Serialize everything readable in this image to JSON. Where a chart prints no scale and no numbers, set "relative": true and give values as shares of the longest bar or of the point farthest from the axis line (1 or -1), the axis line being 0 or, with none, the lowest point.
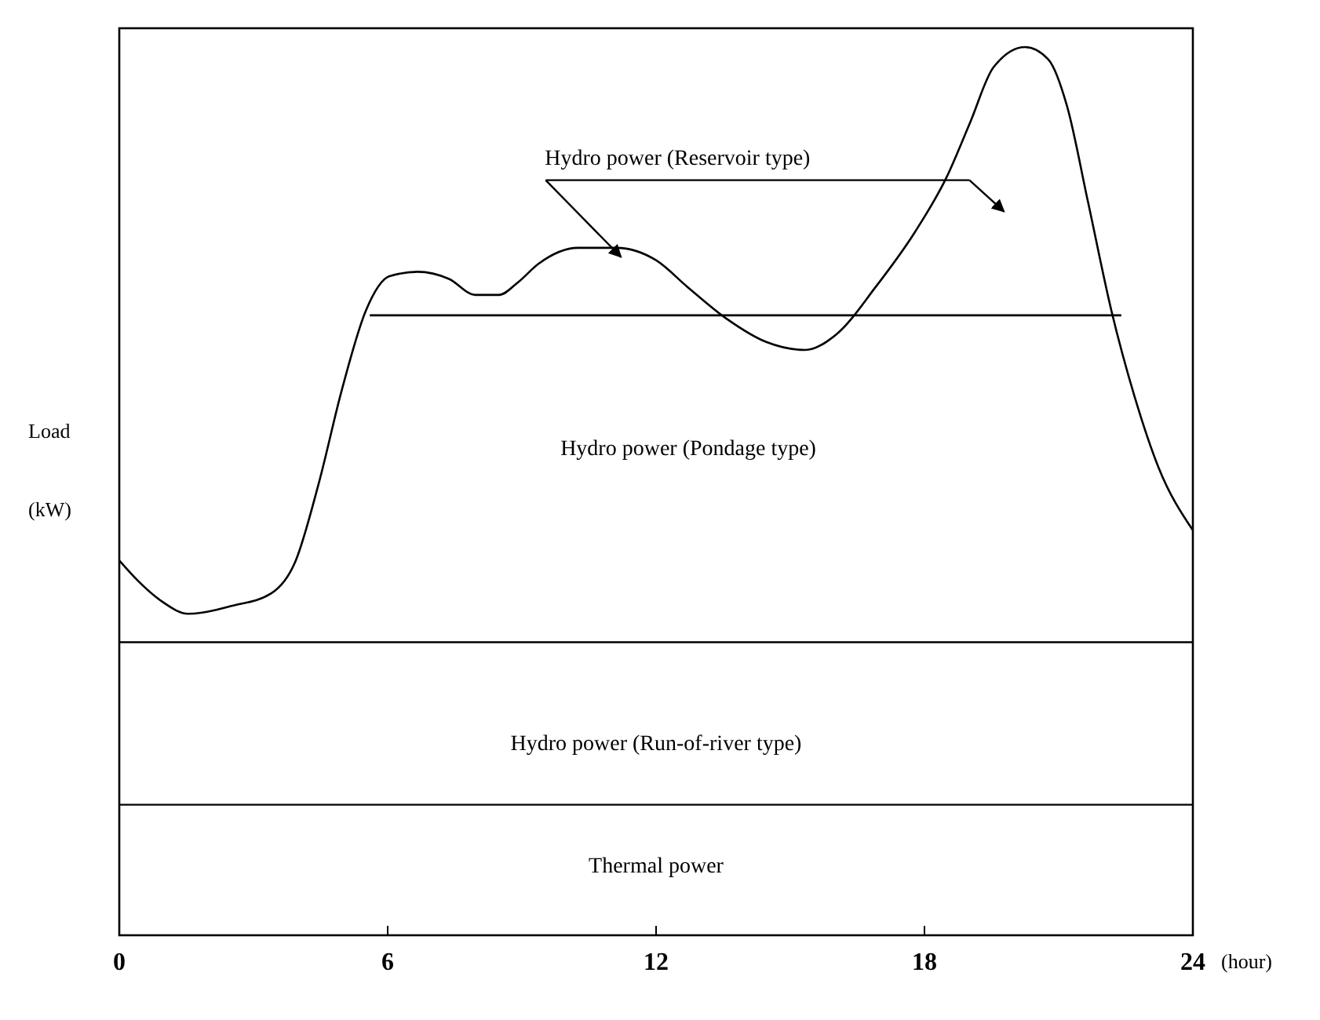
{
  "chart_data": {
    "type": "line",
    "relative": true,
    "xlabel": "(hour)",
    "ylabel": "Load (kW)",
    "xlim": [
      0,
      24
    ],
    "xticks": [
      0,
      6,
      12,
      18,
      24
    ],
    "grid": false,
    "marker": "none",
    "line_style": "solid",
    "series": [
      {
        "color": "#000000",
        "x": [
          0,
          0.42,
          0.95,
          1.54,
          2.53,
          3.4,
          3.93,
          4.46,
          4.98,
          5.51,
          6.04,
          6.67,
          7.37,
          7.96,
          8.49,
          8.91,
          9.37,
          10.25,
          11.12,
          12,
          12.7,
          13.58,
          14.46,
          15.33,
          16.04,
          16.91,
          17.79,
          18.49,
          19.02,
          19.54,
          20.25,
          20.77,
          21.19,
          21.65,
          22.18,
          22.7,
          23.23,
          24
        ],
        "values": [
          0.422,
          0.399,
          0.376,
          0.362,
          0.371,
          0.385,
          0.42,
          0.509,
          0.615,
          0.703,
          0.742,
          0.747,
          0.739,
          0.721,
          0.721,
          0.735,
          0.756,
          0.774,
          0.774,
          0.76,
          0.73,
          0.694,
          0.668,
          0.659,
          0.677,
          0.73,
          0.792,
          0.853,
          0.915,
          0.977,
          1,
          0.986,
          0.933,
          0.827,
          0.703,
          0.606,
          0.527,
          0.456
        ]
      },
      {
        "color": "#000000",
        "x": [
          5.6,
          22.4
        ],
        "values": [
          0.698,
          0.698
        ]
      }
    ],
    "ref_lines": [
      {
        "axis": "y",
        "value": 0.33,
        "color": "#000000"
      },
      {
        "axis": "y",
        "value": 0.147,
        "color": "#000000"
      }
    ],
    "annotations": [
      "Hydro power (Reservoir type)",
      "Hydro power (Pondage type)",
      "Hydro power (Run-of-river type)",
      "Thermal power"
    ]
  }
}
